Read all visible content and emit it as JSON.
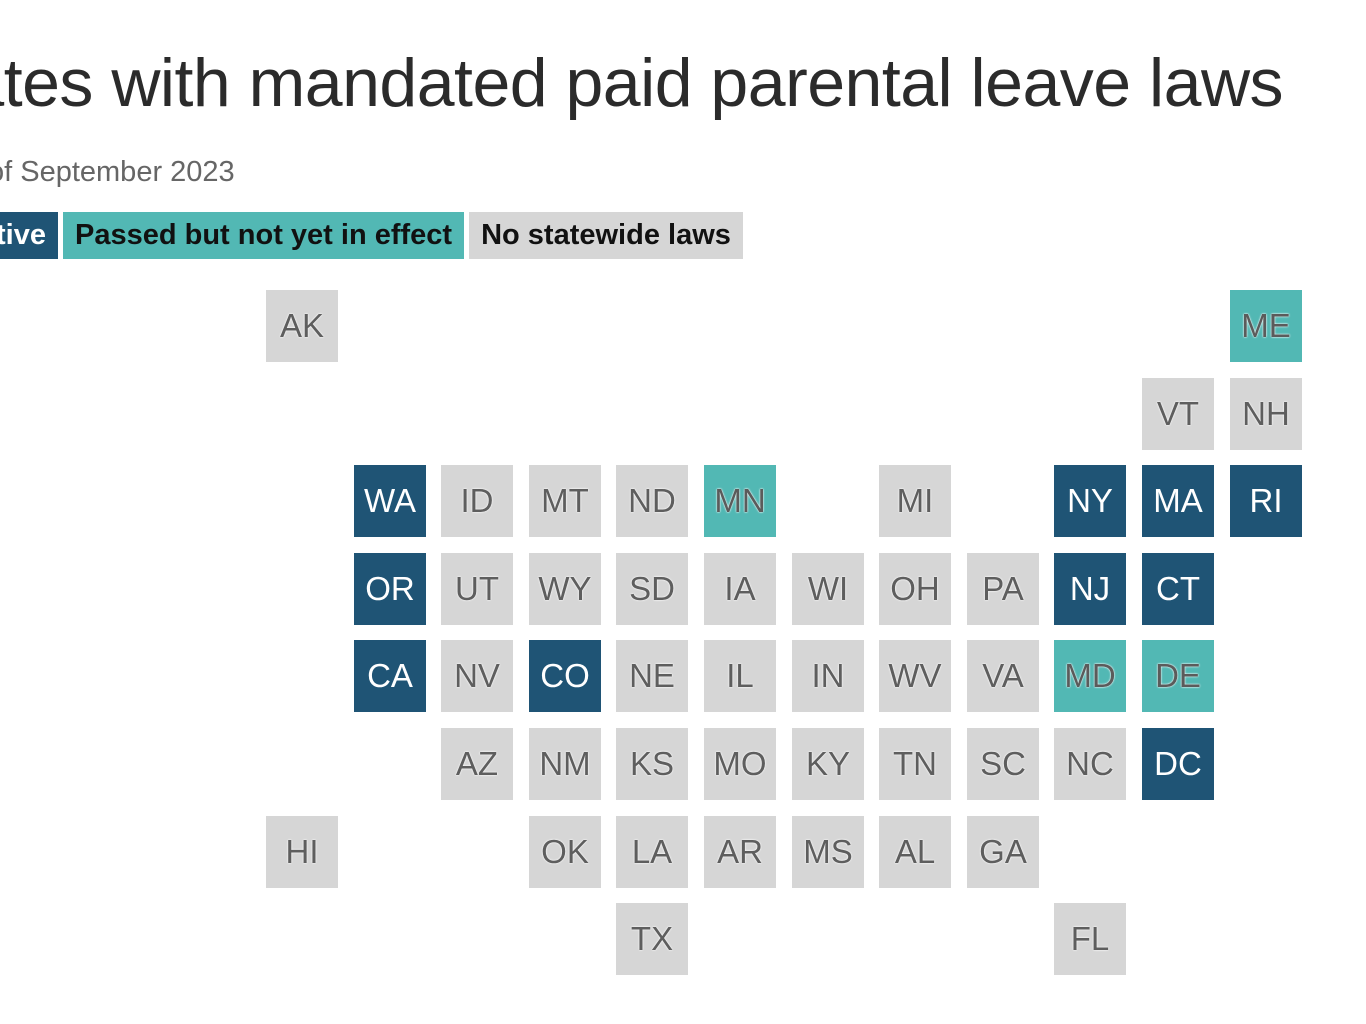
{
  "title": "tates with mandated paid parental leave laws",
  "subtitle": "of September 2023",
  "colors": {
    "active": "#1f5475",
    "passed": "#52b8b4",
    "none": "#d6d6d6"
  },
  "legend": [
    {
      "key": "active",
      "label": "tive"
    },
    {
      "key": "passed",
      "label": "Passed but not yet in effect"
    },
    {
      "key": "none",
      "label": "No statewide laws"
    }
  ],
  "states": [
    {
      "code": "AK",
      "status": "none",
      "col": 0,
      "row": 0
    },
    {
      "code": "ME",
      "status": "passed",
      "col": 11,
      "row": 0
    },
    {
      "code": "VT",
      "status": "none",
      "col": 10,
      "row": 1
    },
    {
      "code": "NH",
      "status": "none",
      "col": 11,
      "row": 1
    },
    {
      "code": "WA",
      "status": "active",
      "col": 1,
      "row": 2
    },
    {
      "code": "ID",
      "status": "none",
      "col": 2,
      "row": 2
    },
    {
      "code": "MT",
      "status": "none",
      "col": 3,
      "row": 2
    },
    {
      "code": "ND",
      "status": "none",
      "col": 4,
      "row": 2
    },
    {
      "code": "MN",
      "status": "passed",
      "col": 5,
      "row": 2
    },
    {
      "code": "MI",
      "status": "none",
      "col": 7,
      "row": 2
    },
    {
      "code": "NY",
      "status": "active",
      "col": 9,
      "row": 2
    },
    {
      "code": "MA",
      "status": "active",
      "col": 10,
      "row": 2
    },
    {
      "code": "RI",
      "status": "active",
      "col": 11,
      "row": 2
    },
    {
      "code": "OR",
      "status": "active",
      "col": 1,
      "row": 3
    },
    {
      "code": "UT",
      "status": "none",
      "col": 2,
      "row": 3
    },
    {
      "code": "WY",
      "status": "none",
      "col": 3,
      "row": 3
    },
    {
      "code": "SD",
      "status": "none",
      "col": 4,
      "row": 3
    },
    {
      "code": "IA",
      "status": "none",
      "col": 5,
      "row": 3
    },
    {
      "code": "WI",
      "status": "none",
      "col": 6,
      "row": 3
    },
    {
      "code": "OH",
      "status": "none",
      "col": 7,
      "row": 3
    },
    {
      "code": "PA",
      "status": "none",
      "col": 8,
      "row": 3
    },
    {
      "code": "NJ",
      "status": "active",
      "col": 9,
      "row": 3
    },
    {
      "code": "CT",
      "status": "active",
      "col": 10,
      "row": 3
    },
    {
      "code": "CA",
      "status": "active",
      "col": 1,
      "row": 4
    },
    {
      "code": "NV",
      "status": "none",
      "col": 2,
      "row": 4
    },
    {
      "code": "CO",
      "status": "active",
      "col": 3,
      "row": 4
    },
    {
      "code": "NE",
      "status": "none",
      "col": 4,
      "row": 4
    },
    {
      "code": "IL",
      "status": "none",
      "col": 5,
      "row": 4
    },
    {
      "code": "IN",
      "status": "none",
      "col": 6,
      "row": 4
    },
    {
      "code": "WV",
      "status": "none",
      "col": 7,
      "row": 4
    },
    {
      "code": "VA",
      "status": "none",
      "col": 8,
      "row": 4
    },
    {
      "code": "MD",
      "status": "passed",
      "col": 9,
      "row": 4
    },
    {
      "code": "DE",
      "status": "passed",
      "col": 10,
      "row": 4
    },
    {
      "code": "AZ",
      "status": "none",
      "col": 2,
      "row": 5
    },
    {
      "code": "NM",
      "status": "none",
      "col": 3,
      "row": 5
    },
    {
      "code": "KS",
      "status": "none",
      "col": 4,
      "row": 5
    },
    {
      "code": "MO",
      "status": "none",
      "col": 5,
      "row": 5
    },
    {
      "code": "KY",
      "status": "none",
      "col": 6,
      "row": 5
    },
    {
      "code": "TN",
      "status": "none",
      "col": 7,
      "row": 5
    },
    {
      "code": "SC",
      "status": "none",
      "col": 8,
      "row": 5
    },
    {
      "code": "NC",
      "status": "none",
      "col": 9,
      "row": 5
    },
    {
      "code": "DC",
      "status": "active",
      "col": 10,
      "row": 5
    },
    {
      "code": "HI",
      "status": "none",
      "col": 0,
      "row": 6
    },
    {
      "code": "OK",
      "status": "none",
      "col": 3,
      "row": 6
    },
    {
      "code": "LA",
      "status": "none",
      "col": 4,
      "row": 6
    },
    {
      "code": "AR",
      "status": "none",
      "col": 5,
      "row": 6
    },
    {
      "code": "MS",
      "status": "none",
      "col": 6,
      "row": 6
    },
    {
      "code": "AL",
      "status": "none",
      "col": 7,
      "row": 6
    },
    {
      "code": "GA",
      "status": "none",
      "col": 8,
      "row": 6
    },
    {
      "code": "TX",
      "status": "none",
      "col": 4,
      "row": 7
    },
    {
      "code": "FL",
      "status": "none",
      "col": 9,
      "row": 7
    }
  ]
}
